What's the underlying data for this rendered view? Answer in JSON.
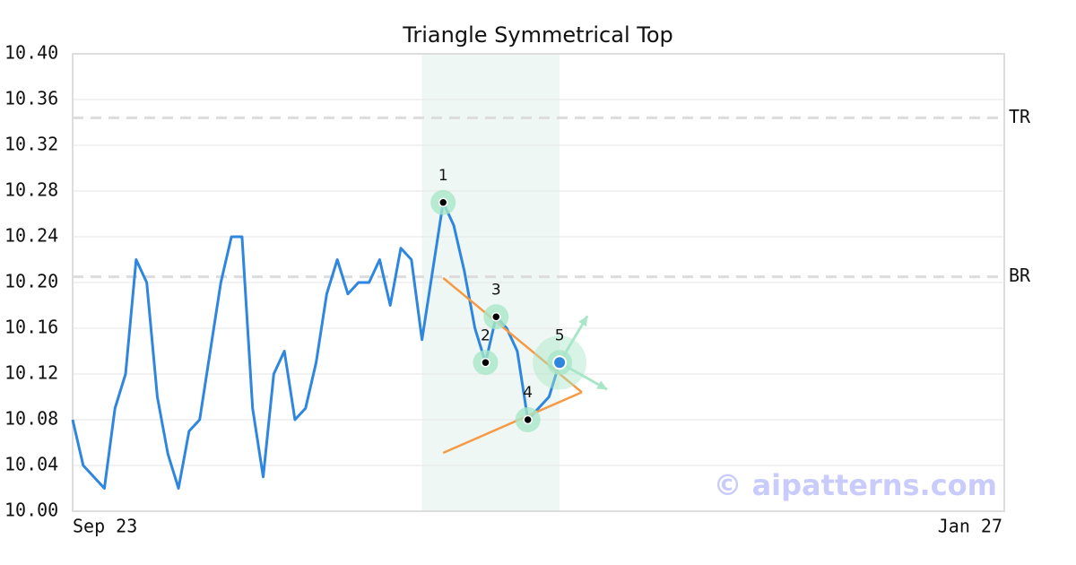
{
  "chart_data": {
    "type": "line",
    "title": "Triangle Symmetrical Top",
    "categories": [
      "Sep 23",
      null,
      null,
      null,
      null,
      null,
      null,
      null,
      null,
      null,
      null,
      null,
      null,
      null,
      null,
      null,
      null,
      null,
      null,
      null,
      null,
      null,
      null,
      null,
      null,
      null,
      null,
      null,
      null,
      null,
      null,
      null,
      null,
      null,
      null,
      null,
      null,
      null,
      null,
      null,
      null,
      null,
      null,
      null,
      null,
      null,
      null,
      null,
      null,
      null,
      null,
      null,
      null,
      null,
      null,
      null,
      null,
      null,
      null,
      null,
      null,
      null,
      null,
      null,
      null,
      null,
      null,
      null,
      null,
      null,
      null,
      null,
      null,
      null,
      null,
      null,
      null,
      null,
      null,
      null,
      null,
      null,
      null,
      null,
      null,
      null,
      null,
      null,
      "Jan 27"
    ],
    "series": [
      {
        "color": "#2e86de",
        "values": [
          10.08,
          10.04,
          10.03,
          10.02,
          10.09,
          10.12,
          10.22,
          10.2,
          10.1,
          10.05,
          10.02,
          10.07,
          10.08,
          10.14,
          10.2,
          10.24,
          10.24,
          10.09,
          10.03,
          10.12,
          10.14,
          10.08,
          10.09,
          10.13,
          10.19,
          10.22,
          10.19,
          10.2,
          10.2,
          10.22,
          10.18,
          10.23,
          10.22,
          10.15,
          10.21,
          10.27,
          10.25,
          10.21,
          10.16,
          10.13,
          10.17,
          10.16,
          10.14,
          10.08,
          10.09,
          10.1,
          10.13,
          null,
          null,
          null,
          null,
          null,
          null,
          null,
          null,
          null,
          null,
          null,
          null,
          null,
          null,
          null,
          null,
          null,
          null,
          null,
          null,
          null,
          null,
          null,
          null,
          null,
          null,
          null,
          null,
          null,
          null,
          null,
          null,
          null,
          null,
          null,
          null,
          null,
          null,
          null,
          null,
          null,
          null
        ]
      }
    ],
    "ylim": [
      10.0,
      10.4
    ],
    "yticks": [
      {
        "value": 10.0,
        "label": "10.00"
      },
      10.04,
      10.08,
      10.12,
      10.16,
      {
        "value": 10.2,
        "label": "10.20"
      },
      10.24,
      10.28,
      10.32,
      10.36,
      {
        "value": 10.4,
        "label": "10.40"
      }
    ],
    "grid": true,
    "levels": [
      {
        "label": "TR",
        "value": 10.344
      },
      {
        "label": "BR",
        "value": 10.205
      }
    ],
    "highlight_range": [
      33,
      46
    ],
    "points": [
      {
        "label": "1",
        "index": 35,
        "value": 10.27
      },
      {
        "label": "2",
        "index": 39,
        "value": 10.13
      },
      {
        "label": "3",
        "index": 40,
        "value": 10.17
      },
      {
        "label": "4",
        "index": 43,
        "value": 10.08
      },
      {
        "label": "5",
        "index": 46,
        "value": 10.13
      }
    ],
    "trendlines": [
      {
        "color": "#f59a45",
        "x": [
          35,
          48.1
        ],
        "values": [
          10.204,
          10.104
        ]
      },
      {
        "color": "#f59a45",
        "x": [
          35,
          48.1
        ],
        "values": [
          10.051,
          10.104
        ]
      }
    ],
    "watermark": "© aipatterns.com"
  }
}
